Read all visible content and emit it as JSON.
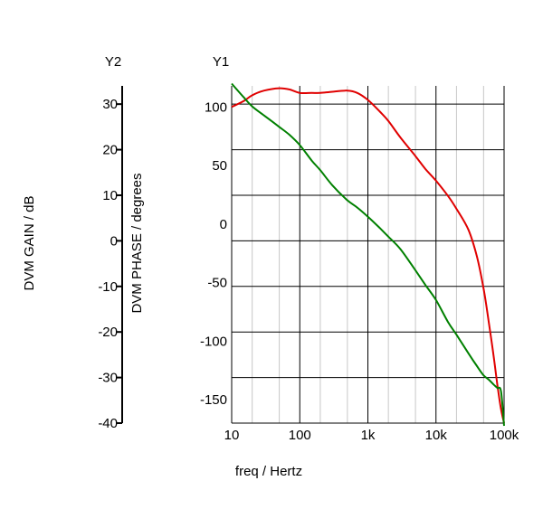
{
  "chart_data": {
    "type": "line",
    "title": "",
    "xlabel": "freq / Hertz",
    "x_scale": "log",
    "xlim": [
      10,
      100000
    ],
    "x_ticks": [
      10,
      100,
      1000,
      10000,
      100000
    ],
    "x_tick_labels": [
      "10",
      "100",
      "1k",
      "10k",
      "100k"
    ],
    "grid": true,
    "y1": {
      "header": "Y1",
      "label": "DVM PHASE / degrees",
      "range": [
        -170,
        118
      ],
      "ticks": [
        100,
        50,
        0,
        -50,
        -100,
        -150
      ],
      "tick_labels": [
        "100",
        "50",
        "0",
        "-50",
        "-100",
        "-150"
      ]
    },
    "y2": {
      "header": "Y2",
      "label": "DVM GAIN / dB",
      "range": [
        -40,
        34
      ],
      "ticks": [
        30,
        20,
        10,
        0,
        -10,
        -20,
        -30,
        -40
      ],
      "tick_labels": [
        "30",
        "20",
        "10",
        "0",
        "-10",
        "-20",
        "-30",
        "-40"
      ]
    },
    "series": [
      {
        "axis": "y1",
        "color": "#e00000",
        "x": [
          10,
          15,
          20,
          30,
          50,
          70,
          100,
          150,
          200,
          300,
          500,
          700,
          1000,
          1500,
          2000,
          3000,
          5000,
          7000,
          10000,
          15000,
          20000,
          30000,
          40000,
          50000,
          60000,
          70000,
          80000,
          90000,
          100000
        ],
        "y": [
          100,
          105,
          110,
          114,
          116,
          115,
          112,
          112,
          112,
          113,
          114,
          112,
          106,
          96,
          88,
          74,
          58,
          47,
          37,
          24,
          13,
          -5,
          -28,
          -55,
          -85,
          -112,
          -138,
          -158,
          -170
        ]
      },
      {
        "axis": "y2",
        "color": "#008000",
        "x": [
          10,
          15,
          20,
          30,
          50,
          70,
          100,
          150,
          200,
          300,
          500,
          700,
          1000,
          1500,
          2000,
          3000,
          5000,
          7000,
          10000,
          15000,
          20000,
          30000,
          40000,
          50000,
          60000,
          70000,
          80000,
          90000,
          100000
        ],
        "y": [
          34.5,
          31.5,
          29.5,
          27.5,
          25,
          23.3,
          21,
          17.6,
          15.5,
          12.2,
          8.9,
          7.3,
          5.3,
          2.8,
          0.9,
          -1.8,
          -6.5,
          -9.7,
          -13,
          -17.8,
          -20.6,
          -24.7,
          -27.5,
          -29.5,
          -30.5,
          -31.5,
          -32.3,
          -33,
          -40.6
        ]
      }
    ]
  }
}
